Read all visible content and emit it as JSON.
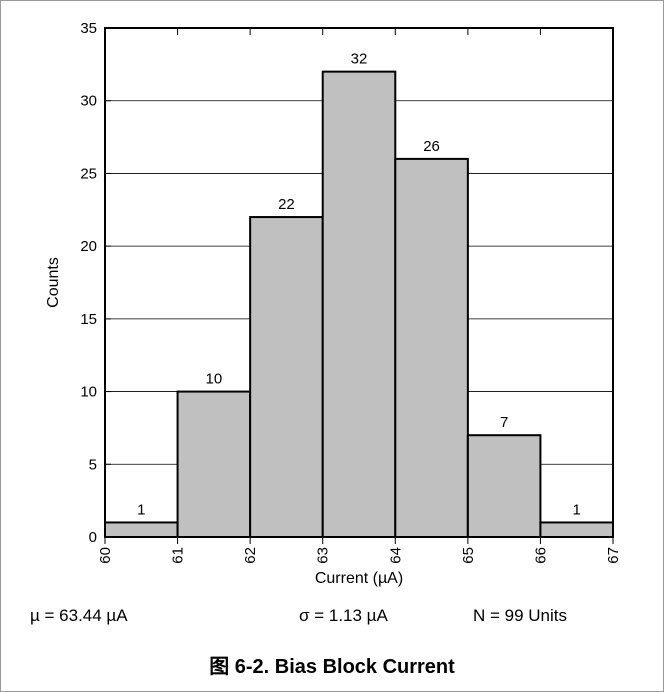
{
  "chart_data": {
    "type": "bar",
    "title": "",
    "xlabel": "Current (µA)",
    "ylabel": "Counts",
    "bin_edges": [
      60,
      61,
      62,
      63,
      64,
      65,
      66,
      67
    ],
    "values": [
      1,
      10,
      22,
      32,
      26,
      7,
      1
    ],
    "value_labels": [
      "1",
      "10",
      "22",
      "32",
      "26",
      "7",
      "1"
    ],
    "x_ticks": [
      "60",
      "61",
      "62",
      "63",
      "64",
      "65",
      "66",
      "67"
    ],
    "y_ticks": [
      "0",
      "5",
      "10",
      "15",
      "20",
      "25",
      "30",
      "35"
    ],
    "xlim": [
      60,
      67
    ],
    "ylim": [
      0,
      35
    ],
    "grid": "horizontal",
    "bar_color": "#c0c0c0",
    "edge_color": "#000000"
  },
  "stats": {
    "mean": "µ = 63.44 µA",
    "sigma": "σ  = 1.13 µA",
    "n": "N = 99 Units"
  },
  "caption": "图 6-2. Bias Block Current"
}
